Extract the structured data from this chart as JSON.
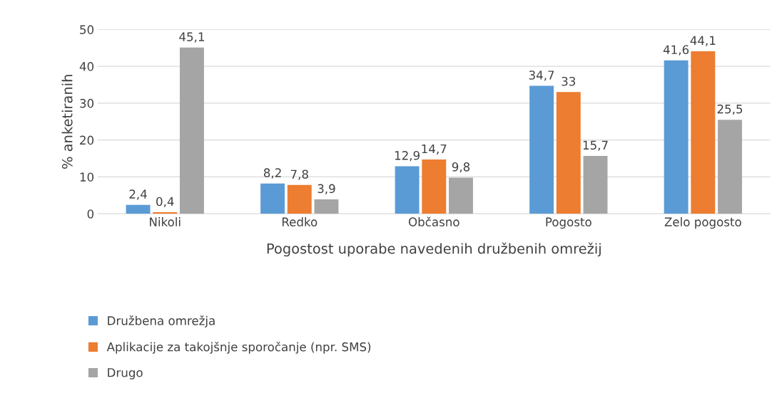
{
  "chart_data": {
    "type": "bar",
    "xlabel": "Pogostost uporabe navedenih družbenih omrežij",
    "ylabel": "% anketiranih",
    "categories": [
      "Nikoli",
      "Redko",
      "Občasno",
      "Pogosto",
      "Zelo pogosto"
    ],
    "series": [
      {
        "name": "Družbena omrežja",
        "color": "#5b9bd5",
        "values": [
          2.4,
          8.2,
          12.9,
          34.7,
          41.6
        ],
        "value_labels": [
          "2,4",
          "8,2",
          "12,9",
          "34,7",
          "41,6"
        ]
      },
      {
        "name": "Aplikacije za takojšnje sporočanje (npr. SMS)",
        "color": "#ed7d31",
        "values": [
          0.4,
          7.8,
          14.7,
          33,
          44.1
        ],
        "value_labels": [
          "0,4",
          "7,8",
          "14,7",
          "33",
          "44,1"
        ]
      },
      {
        "name": "Drugo",
        "color": "#a5a5a5",
        "values": [
          45.1,
          3.9,
          9.8,
          15.7,
          25.5
        ],
        "value_labels": [
          "45,1",
          "3,9",
          "9,8",
          "15,7",
          "25,5"
        ]
      }
    ],
    "ylim": [
      0,
      50
    ],
    "yticks": [
      0,
      10,
      20,
      30,
      40,
      50
    ],
    "grid": "y",
    "legend": "bottom"
  }
}
